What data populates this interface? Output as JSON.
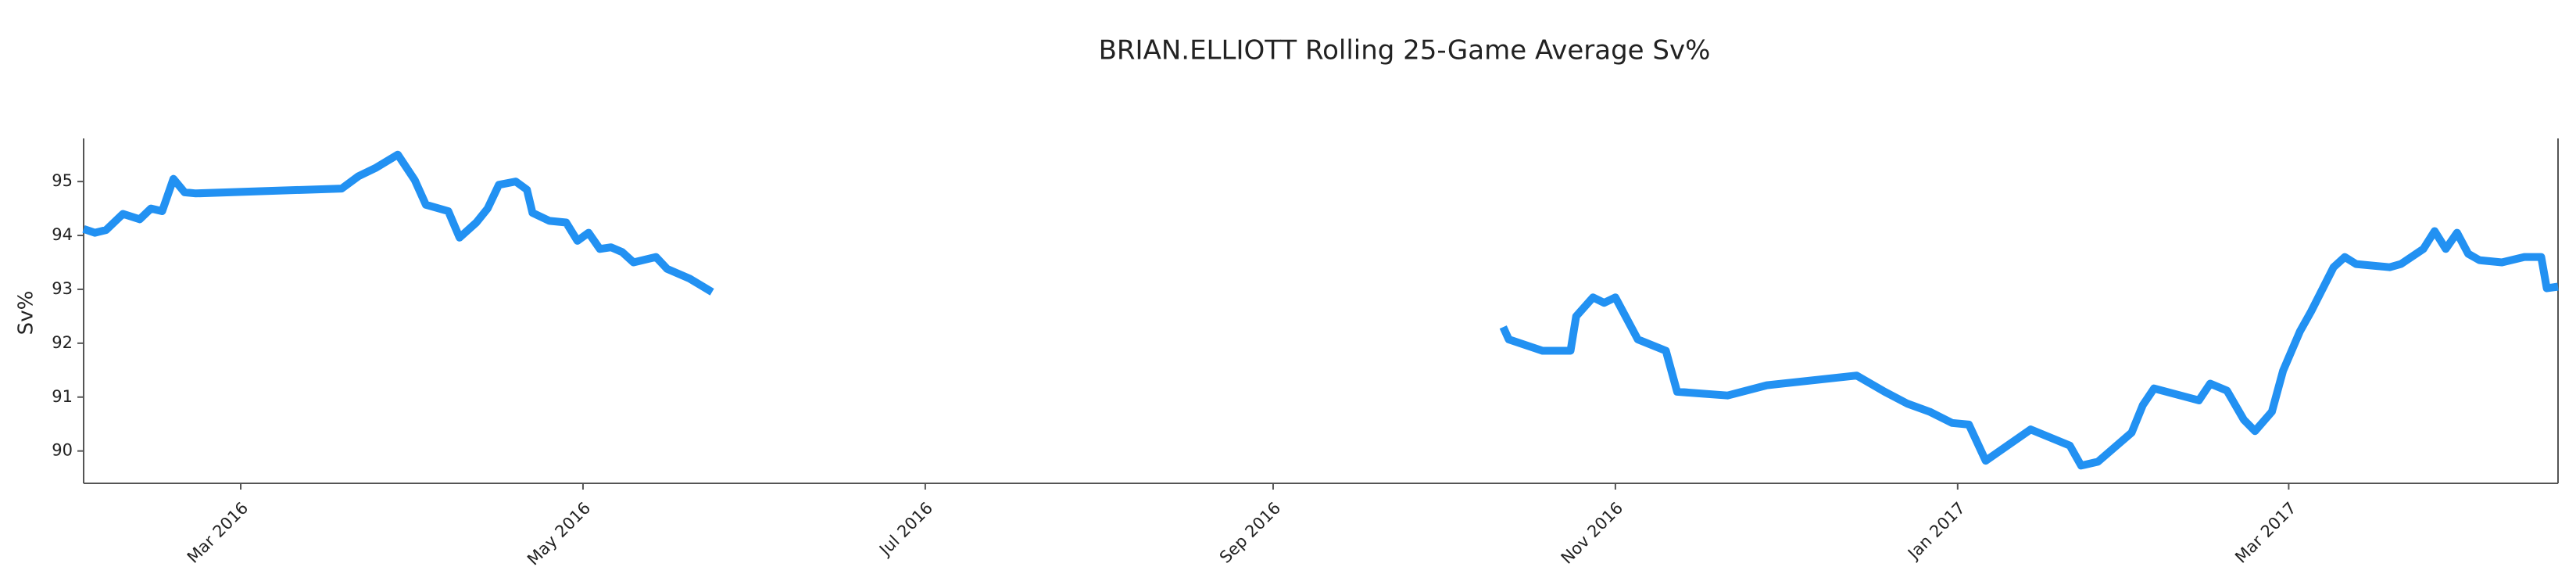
{
  "chart_data": {
    "type": "line",
    "title": "BRIAN.ELLIOTT Rolling 25-Game Average Sv%",
    "y_label": "Sv%",
    "x": [
      "2016-02-02",
      "2016-02-04",
      "2016-02-06",
      "2016-02-09",
      "2016-02-12",
      "2016-02-14",
      "2016-02-16",
      "2016-02-18",
      "2016-02-20",
      "2016-02-22",
      "2016-03-19",
      "2016-03-22",
      "2016-03-25",
      "2016-03-29",
      "2016-04-01",
      "2016-04-03",
      "2016-04-07",
      "2016-04-09",
      "2016-04-12",
      "2016-04-14",
      "2016-04-16",
      "2016-04-19",
      "2016-04-21",
      "2016-04-22",
      "2016-04-25",
      "2016-04-28",
      "2016-04-30",
      "2016-05-02",
      "2016-05-04",
      "2016-05-06",
      "2016-05-08",
      "2016-05-10",
      "2016-05-14",
      "2016-05-16",
      "2016-05-20",
      "2016-05-24",
      "2016-08-01",
      "2016-10-12",
      "2016-10-13",
      "2016-10-19",
      "2016-10-24",
      "2016-10-25",
      "2016-10-28",
      "2016-10-30",
      "2016-11-01",
      "2016-11-05",
      "2016-11-10",
      "2016-11-12",
      "2016-11-21",
      "2016-11-28",
      "2016-12-14",
      "2016-12-19",
      "2016-12-23",
      "2016-12-27",
      "2016-12-31",
      "2017-01-03",
      "2017-01-06",
      "2017-01-14",
      "2017-01-21",
      "2017-01-23",
      "2017-01-26",
      "2017-02-01",
      "2017-02-03",
      "2017-02-05",
      "2017-02-13",
      "2017-02-15",
      "2017-02-18",
      "2017-02-21",
      "2017-02-23",
      "2017-02-26",
      "2017-02-28",
      "2017-03-03",
      "2017-03-05",
      "2017-03-09",
      "2017-03-11",
      "2017-03-13",
      "2017-03-19",
      "2017-03-21",
      "2017-03-25",
      "2017-03-27",
      "2017-03-29",
      "2017-03-31",
      "2017-04-02",
      "2017-04-04",
      "2017-04-08",
      "2017-04-12",
      "2017-04-15",
      "2017-04-16",
      "2017-04-18"
    ],
    "series": [
      {
        "color": "#2291f2",
        "values": [
          94.12,
          94.05,
          94.1,
          94.4,
          94.3,
          94.5,
          94.45,
          95.05,
          94.8,
          94.78,
          94.87,
          95.1,
          95.25,
          95.5,
          95.03,
          94.57,
          94.45,
          93.96,
          94.24,
          94.5,
          94.94,
          95.0,
          94.85,
          94.42,
          94.27,
          94.24,
          93.9,
          94.05,
          93.75,
          93.78,
          93.69,
          93.5,
          93.6,
          93.38,
          93.2,
          92.95,
          null,
          92.3,
          92.07,
          91.86,
          91.86,
          92.5,
          92.85,
          92.75,
          92.85,
          92.07,
          91.86,
          91.1,
          91.03,
          91.22,
          91.4,
          91.1,
          90.88,
          90.73,
          90.52,
          90.49,
          89.82,
          90.4,
          90.1,
          89.73,
          89.8,
          90.34,
          90.85,
          91.16,
          90.94,
          91.25,
          91.12,
          90.58,
          90.37,
          90.73,
          91.49,
          92.22,
          92.59,
          93.41,
          93.6,
          93.47,
          93.41,
          93.47,
          93.75,
          94.08,
          93.75,
          94.05,
          93.66,
          93.54,
          93.5,
          93.6,
          93.6,
          93.02,
          93.05
        ]
      }
    ],
    "xlim": [
      "2016-02-02",
      "2017-04-18"
    ],
    "xticks": [
      {
        "value": "2016-03-01",
        "label": "Mar 2016"
      },
      {
        "value": "2016-05-01",
        "label": "May 2016"
      },
      {
        "value": "2016-07-01",
        "label": "Jul 2016"
      },
      {
        "value": "2016-09-01",
        "label": "Sep 2016"
      },
      {
        "value": "2016-11-01",
        "label": "Nov 2016"
      },
      {
        "value": "2017-01-01",
        "label": "Jan 2017"
      },
      {
        "value": "2017-03-01",
        "label": "Mar 2017"
      }
    ],
    "ylim": [
      89.4,
      95.8
    ],
    "yticks": [
      90,
      91,
      92,
      93,
      94,
      95
    ],
    "grid": false
  }
}
